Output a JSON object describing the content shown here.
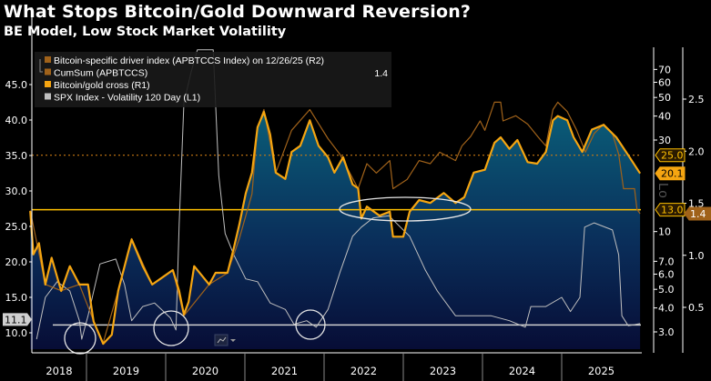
{
  "title": "What Stops Bitcoin/Gold Downward Reversion?",
  "subtitle": "BE Model, Low Stock Market Volatility",
  "chart_data": {
    "type": "line",
    "title": "What Stops Bitcoin/Gold Downward Reversion?",
    "subtitle": "BE Model, Low Stock Market Volatility",
    "x_unit": "year",
    "xlim": [
      2018.3,
      2026.0
    ],
    "x_tick_labels": [
      "2018",
      "2019",
      "2020",
      "2021",
      "2022",
      "2023",
      "2024",
      "2025"
    ],
    "grid": false,
    "legend_position": "top-left",
    "axes": {
      "L1": {
        "scale": "linear",
        "range": [
          8,
          50
        ],
        "tick_labels": [
          "10.0",
          "15.0",
          "20.0",
          "25.0",
          "30.0",
          "35.0",
          "40.0",
          "45.0"
        ]
      },
      "R1": {
        "scale": "log",
        "range": [
          2.6,
          80
        ],
        "tick_labels": [
          "3.0",
          "4.0",
          "5.0",
          "6.0",
          "7.0",
          "10",
          "30",
          "40",
          "50",
          "60",
          "70"
        ]
      },
      "R2": {
        "scale": "linear",
        "range": [
          0.2,
          2.8
        ],
        "tick_labels": [
          "0.5",
          "1.0",
          "1.5",
          "2.0",
          "2.5"
        ]
      },
      "watermark": "Lo"
    },
    "legend": [
      {
        "label": "Bitcoin-specific driver index (APBTCCS Index) on 12/26/25 (R2)",
        "color": "#a0621a",
        "value": "1.4"
      },
      {
        "label": "CumSum (APBTCCS)",
        "color": "#a0621a"
      },
      {
        "label": "Bitcoin/gold cross (R1)",
        "color": "#f5a511"
      },
      {
        "label": "SPX Index - Volatility 120 Day (L1)",
        "color": "#bfbfbf"
      }
    ],
    "series": [
      {
        "name": "Bitcoin/gold cross (R1)",
        "axis": "R1",
        "color": "#f5a511",
        "x": [
          2018.29,
          2018.33,
          2018.4,
          2018.48,
          2018.56,
          2018.68,
          2018.79,
          2018.91,
          2019.02,
          2019.09,
          2019.21,
          2019.32,
          2019.4,
          2019.52,
          2019.57,
          2019.71,
          2019.83,
          2019.94,
          2020.09,
          2020.17,
          2020.23,
          2020.29,
          2020.36,
          2020.55,
          2020.63,
          2020.78,
          2020.86,
          2020.93,
          2021.01,
          2021.09,
          2021.16,
          2021.24,
          2021.32,
          2021.39,
          2021.51,
          2021.59,
          2021.7,
          2021.82,
          2021.93,
          2022.05,
          2022.13,
          2022.24,
          2022.36,
          2022.43,
          2022.47,
          2022.54,
          2022.7,
          2022.83,
          2022.87,
          2023.0,
          2023.08,
          2023.2,
          2023.34,
          2023.51,
          2023.66,
          2023.77,
          2023.89,
          2024.03,
          2024.15,
          2024.23,
          2024.34,
          2024.44,
          2024.57,
          2024.69,
          2024.8,
          2024.89,
          2024.95,
          2025.07,
          2025.15,
          2025.26,
          2025.38,
          2025.53,
          2025.69,
          2025.84,
          2025.99
        ],
        "y": [
          12.8,
          7.6,
          8.7,
          5.3,
          7.3,
          4.9,
          6.6,
          5.3,
          5.3,
          3.4,
          2.6,
          2.9,
          4.9,
          7.6,
          9.1,
          6.6,
          5.3,
          5.7,
          6.3,
          4.9,
          3.7,
          4.3,
          6.6,
          5.3,
          6.1,
          6.1,
          8.2,
          10.9,
          15.8,
          20.3,
          35,
          42,
          32,
          20.3,
          18.8,
          26,
          28,
          38,
          28,
          24.4,
          20.3,
          24.4,
          17.6,
          16.8,
          11.7,
          13.5,
          12.1,
          12.7,
          9.4,
          9.4,
          12.7,
          14.6,
          14.1,
          15.9,
          14.1,
          15.1,
          20.3,
          21,
          29,
          31,
          27,
          30,
          23,
          22.6,
          26,
          38,
          40,
          38,
          31,
          26,
          34,
          36,
          31,
          25,
          20.1
        ]
      },
      {
        "name": "CumSum (APBTCCS)",
        "axis": "R2",
        "color": "#a0621a",
        "x": [
          2018.29,
          2018.48,
          2018.68,
          2018.91,
          2019.09,
          2019.21,
          2019.4,
          2019.57,
          2019.83,
          2020.09,
          2020.23,
          2020.55,
          2020.78,
          2020.93,
          2021.09,
          2021.16,
          2021.24,
          2021.39,
          2021.59,
          2021.82,
          2022.05,
          2022.2,
          2022.43,
          2022.54,
          2022.66,
          2022.83,
          2022.87,
          2023.05,
          2023.2,
          2023.34,
          2023.46,
          2023.66,
          2023.74,
          2023.85,
          2023.97,
          2024.03,
          2024.15,
          2024.23,
          2024.26,
          2024.42,
          2024.57,
          2024.72,
          2024.8,
          2024.89,
          2024.95,
          2025.07,
          2025.19,
          2025.3,
          2025.41,
          2025.53,
          2025.64,
          2025.72,
          2025.78,
          2025.92,
          2025.95,
          2025.99
        ],
        "y": [
          1.43,
          0.72,
          0.66,
          0.72,
          0.37,
          0.16,
          0.66,
          1.16,
          0.72,
          0.86,
          0.42,
          0.72,
          0.83,
          1.16,
          1.59,
          2.23,
          2.4,
          1.79,
          2.2,
          2.4,
          2.12,
          1.97,
          1.64,
          1.88,
          1.79,
          1.91,
          1.64,
          1.73,
          1.91,
          1.88,
          1.99,
          1.91,
          2.05,
          2.14,
          2.29,
          2.2,
          2.47,
          2.47,
          2.29,
          2.34,
          2.26,
          2.12,
          2.05,
          2.4,
          2.47,
          2.38,
          2.2,
          1.99,
          2.17,
          2.26,
          2.17,
          1.97,
          1.64,
          1.64,
          1.44,
          1.4
        ]
      },
      {
        "name": "SPX Index - Volatility 120 Day (L1)",
        "axis": "L1",
        "color": "#bfbfbf",
        "x": [
          2018.37,
          2018.48,
          2018.63,
          2018.79,
          2018.91,
          2018.94,
          2019.02,
          2019.17,
          2019.37,
          2019.48,
          2019.57,
          2019.71,
          2019.86,
          2020.06,
          2020.13,
          2020.17,
          2020.23,
          2020.32,
          2020.4,
          2020.6,
          2020.67,
          2020.75,
          2020.86,
          2021.01,
          2021.16,
          2021.32,
          2021.51,
          2021.62,
          2021.78,
          2021.9,
          2022.05,
          2022.2,
          2022.36,
          2022.47,
          2022.62,
          2022.82,
          2023.08,
          2023.28,
          2023.43,
          2023.66,
          2023.85,
          2024.11,
          2024.34,
          2024.54,
          2024.61,
          2024.8,
          2025.0,
          2025.11,
          2025.23,
          2025.29,
          2025.41,
          2025.64,
          2025.72,
          2025.76,
          2025.84,
          2025.99
        ],
        "y": [
          9.1,
          15.0,
          17.2,
          15.9,
          11.7,
          9.1,
          12.4,
          19.7,
          20.4,
          16.8,
          11.7,
          13.7,
          14.2,
          12.1,
          10.4,
          25.3,
          42.4,
          46.7,
          49.9,
          49.9,
          32.2,
          24.0,
          21.0,
          17.6,
          17.2,
          14.2,
          13.3,
          11.2,
          11.7,
          10.8,
          13.3,
          18.5,
          23.6,
          24.9,
          26.2,
          26.5,
          23.6,
          18.8,
          15.9,
          12.4,
          12.4,
          12.4,
          11.7,
          10.8,
          13.7,
          13.7,
          15.0,
          13.0,
          15.0,
          24.9,
          25.5,
          24.5,
          21.0,
          12.4,
          11.0,
          11.3
        ]
      }
    ],
    "reference_lines": [
      {
        "axis": "R1",
        "value": 25.0,
        "style": "dotted",
        "color": "#c87a12",
        "label": "25.0"
      },
      {
        "axis": "R1",
        "value": 13.0,
        "style": "solid",
        "color": "#ffc000",
        "label": "13.0"
      },
      {
        "axis": "L1",
        "value": 11.1,
        "style": "solid",
        "color": "#d0d0d0",
        "label": "11.1"
      }
    ],
    "last_value_tags": [
      {
        "axis": "R1",
        "value": 20.1,
        "label": "20.1"
      },
      {
        "axis": "R2",
        "value": 1.4,
        "label": "1.4"
      }
    ],
    "annotations": [
      {
        "shape": "circle",
        "x": 2018.9
      },
      {
        "shape": "circle",
        "x": 2020.07
      },
      {
        "shape": "circle",
        "x": 2021.82
      },
      {
        "shape": "ellipse",
        "x": 2022.95
      }
    ]
  }
}
